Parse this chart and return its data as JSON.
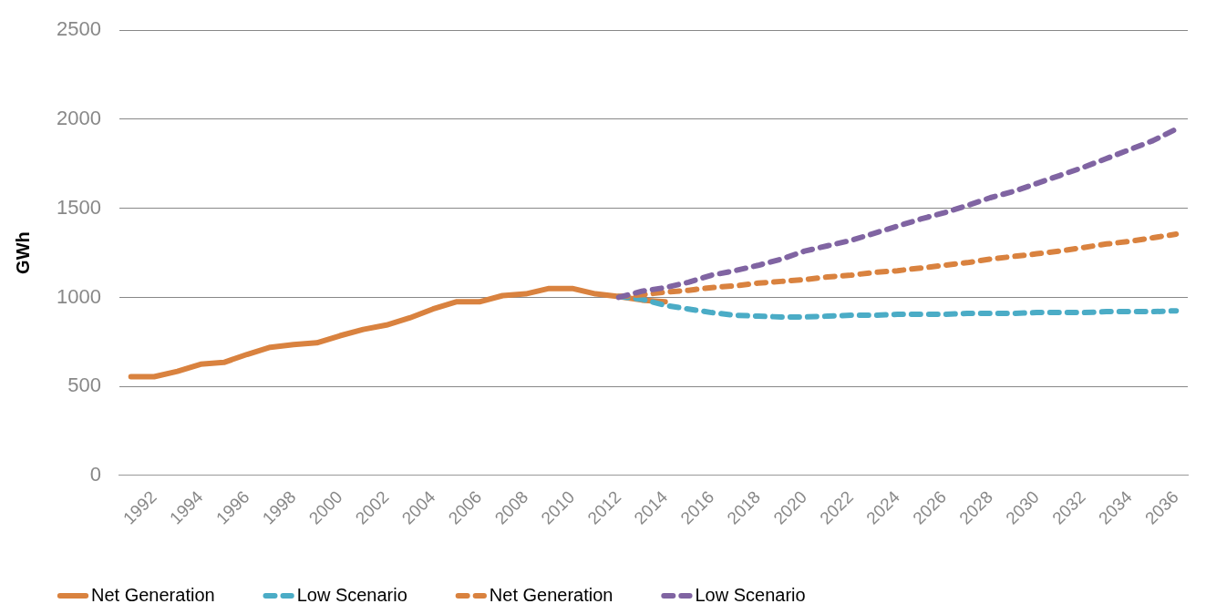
{
  "chart_data": {
    "type": "line",
    "ylabel": "GWh",
    "categories": [
      null,
      "1992",
      null,
      "1994",
      null,
      "1996",
      null,
      "1998",
      null,
      "2000",
      null,
      "2002",
      null,
      "2004",
      null,
      "2006",
      null,
      "2008",
      null,
      "2010",
      null,
      "2012",
      null,
      "2014",
      null,
      "2016",
      null,
      "2018",
      null,
      "2020",
      null,
      "2022",
      null,
      "2024",
      null,
      "2026",
      null,
      "2028",
      null,
      "2030",
      null,
      "2032",
      null,
      "2034",
      null,
      "2036"
    ],
    "series": [
      {
        "name": "Net Generation",
        "color": "#d9823f",
        "line_style": "solid",
        "values": [
          555,
          555,
          585,
          625,
          635,
          680,
          720,
          735,
          745,
          785,
          820,
          845,
          885,
          935,
          975,
          975,
          1010,
          1020,
          1050,
          1050,
          1020,
          1005,
          985,
          975,
          null,
          null,
          null,
          null,
          null,
          null,
          null,
          null,
          null,
          null,
          null,
          null,
          null,
          null,
          null,
          null,
          null,
          null,
          null,
          null,
          null,
          null
        ]
      },
      {
        "name": "Low Scenario",
        "color": "#4bacc6",
        "line_style": "dashed",
        "values": [
          null,
          null,
          null,
          null,
          null,
          null,
          null,
          null,
          null,
          null,
          null,
          null,
          null,
          null,
          null,
          null,
          null,
          null,
          null,
          null,
          null,
          1005,
          990,
          955,
          935,
          915,
          900,
          895,
          890,
          890,
          895,
          900,
          900,
          905,
          905,
          905,
          910,
          910,
          910,
          915,
          915,
          915,
          920,
          920,
          920,
          925
        ]
      },
      {
        "name": "Net Generation",
        "color": "#d9823f",
        "line_style": "dashed",
        "values": [
          null,
          null,
          null,
          null,
          null,
          null,
          null,
          null,
          null,
          null,
          null,
          null,
          null,
          null,
          null,
          null,
          null,
          null,
          null,
          null,
          null,
          1005,
          1015,
          1030,
          1040,
          1055,
          1065,
          1080,
          1090,
          1100,
          1115,
          1125,
          1140,
          1150,
          1165,
          1180,
          1195,
          1215,
          1230,
          1245,
          1260,
          1280,
          1300,
          1315,
          1335,
          1355
        ]
      },
      {
        "name": "Low Scenario",
        "color": "#8064a2",
        "line_style": "dashed",
        "values": [
          null,
          null,
          null,
          null,
          null,
          null,
          null,
          null,
          null,
          null,
          null,
          null,
          null,
          null,
          null,
          null,
          null,
          null,
          null,
          null,
          null,
          1000,
          1035,
          1055,
          1085,
          1125,
          1150,
          1180,
          1215,
          1260,
          1290,
          1320,
          1360,
          1400,
          1440,
          1475,
          1515,
          1560,
          1595,
          1640,
          1685,
          1730,
          1780,
          1830,
          1880,
          1945
        ]
      }
    ],
    "ylim": [
      0,
      2500
    ],
    "yticks": [
      0,
      500,
      1000,
      1500,
      2000,
      2500
    ],
    "grid": "y",
    "legend": "bottom",
    "marker": "none"
  }
}
